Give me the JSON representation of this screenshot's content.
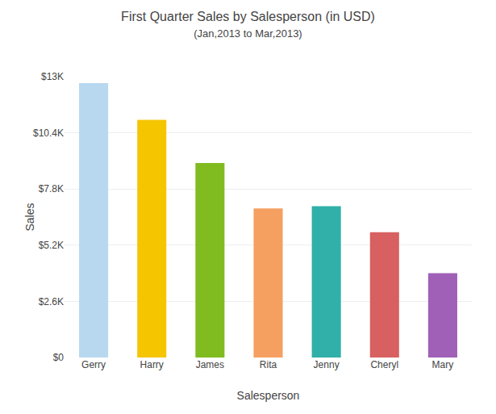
{
  "chart_data": {
    "type": "bar",
    "title": "First Quarter Sales by Salesperson (in USD)",
    "subtitle": "(Jan,2013 to Mar,2013)",
    "xlabel": "Salesperson",
    "ylabel": "Sales",
    "categories": [
      "Gerry",
      "Harry",
      "James",
      "Rita",
      "Jenny",
      "Cheryl",
      "Mary"
    ],
    "values": [
      12700,
      11000,
      9000,
      6900,
      7000,
      5800,
      3900
    ],
    "colors": [
      "#b8d8f0",
      "#f5c500",
      "#80bb20",
      "#f5a060",
      "#30b0a8",
      "#d86060",
      "#a060b8"
    ],
    "ylim": [
      0,
      13000
    ],
    "yticks": [
      {
        "value": 0,
        "label": "$0"
      },
      {
        "value": 2600,
        "label": "$2.6K"
      },
      {
        "value": 5200,
        "label": "$5.2K"
      },
      {
        "value": 7800,
        "label": "$7.8K"
      },
      {
        "value": 10400,
        "label": "$10.4K"
      },
      {
        "value": 13000,
        "label": "$13K"
      }
    ],
    "grid": true
  }
}
